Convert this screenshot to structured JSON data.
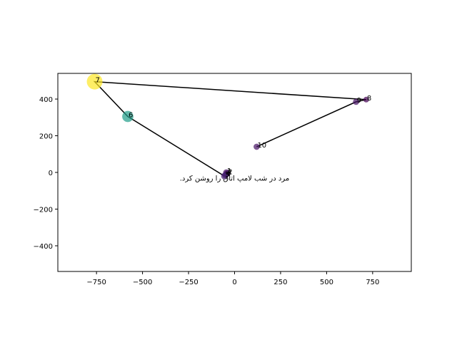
{
  "chart_data": {
    "type": "scatter",
    "title": "",
    "xlabel": "",
    "ylabel": "",
    "xlim": [
      -960,
      960
    ],
    "ylim": [
      -540,
      540
    ],
    "xticks": [
      -750,
      -500,
      -250,
      0,
      250,
      500,
      750
    ],
    "yticks": [
      -400,
      -200,
      0,
      200,
      400
    ],
    "xtick_labels": [
      "−750",
      "−500",
      "−250",
      "0",
      "250",
      "500",
      "750"
    ],
    "ytick_labels": [
      "−400",
      "−200",
      "0",
      "200",
      "400"
    ],
    "grid": false,
    "colormap": "viridis",
    "line_color": "#000000",
    "points": [
      {
        "label": "1",
        "x": -45,
        "y": 0,
        "size": 0.05
      },
      {
        "label": "2",
        "x": -40,
        "y": -5,
        "size": 0.05
      },
      {
        "label": "3",
        "x": -45,
        "y": -10,
        "size": 0.05
      },
      {
        "label": "4",
        "x": -50,
        "y": -15,
        "size": 0.08
      },
      {
        "label": "5",
        "x": -55,
        "y": -20,
        "size": 0.1
      },
      {
        "label": "6",
        "x": -580,
        "y": 305,
        "size": 0.55
      },
      {
        "label": "7",
        "x": -760,
        "y": 495,
        "size": 1.0
      },
      {
        "label": "8",
        "x": 715,
        "y": 397,
        "size": 0.0
      },
      {
        "label": "9",
        "x": 660,
        "y": 385,
        "size": 0.05
      },
      {
        "label": "10",
        "x": 120,
        "y": 140,
        "size": 0.05
      }
    ],
    "annotation": {
      "text": "مرد در شب لامپ اتاق را روشن کرد.",
      "x": 0,
      "y": -30
    }
  }
}
